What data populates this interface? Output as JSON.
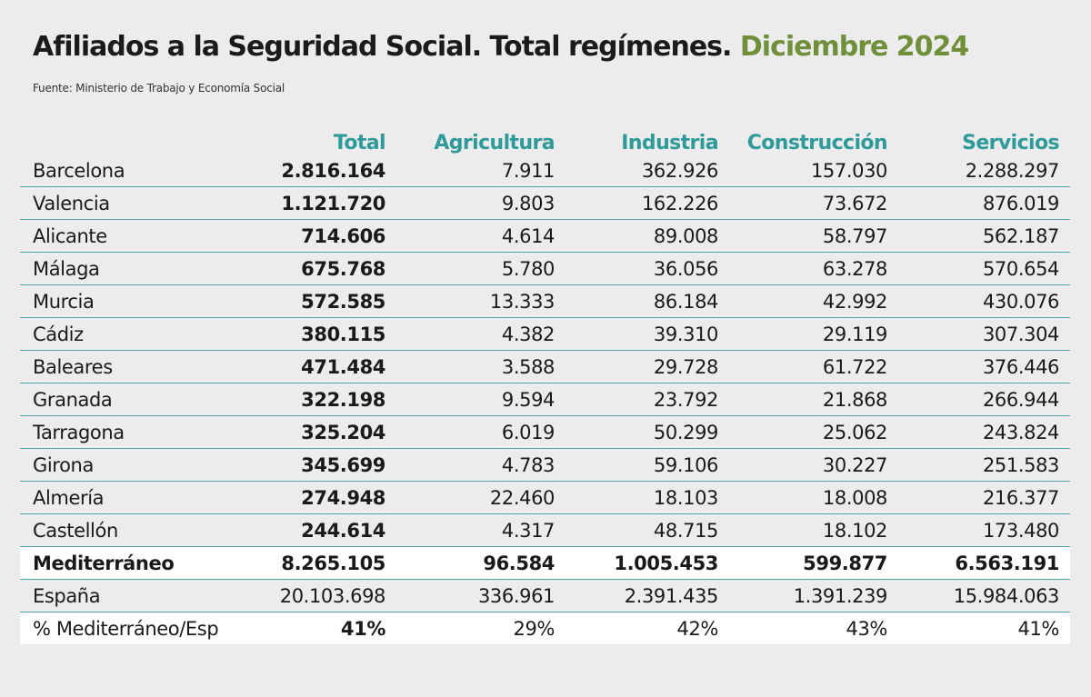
{
  "header": {
    "title_main": "Afiliados a la Seguridad Social. Total regímenes.",
    "title_highlight": "Diciembre 2024",
    "source": "Fuente: Ministerio de Trabajo y Economía Social"
  },
  "table": {
    "columns": [
      "Total",
      "Agricultura",
      "Industria",
      "Construcción",
      "Servicios"
    ],
    "rows": [
      {
        "name": "Barcelona",
        "total": "2.816.164",
        "agricultura": "7.911",
        "industria": "362.926",
        "construccion": "157.030",
        "servicios": "2.288.297"
      },
      {
        "name": "Valencia",
        "total": "1.121.720",
        "agricultura": "9.803",
        "industria": "162.226",
        "construccion": "73.672",
        "servicios": "876.019"
      },
      {
        "name": "Alicante",
        "total": "714.606",
        "agricultura": "4.614",
        "industria": "89.008",
        "construccion": "58.797",
        "servicios": "562.187"
      },
      {
        "name": "Málaga",
        "total": "675.768",
        "agricultura": "5.780",
        "industria": "36.056",
        "construccion": "63.278",
        "servicios": "570.654"
      },
      {
        "name": "Murcia",
        "total": "572.585",
        "agricultura": "13.333",
        "industria": "86.184",
        "construccion": "42.992",
        "servicios": "430.076"
      },
      {
        "name": "Cádiz",
        "total": "380.115",
        "agricultura": "4.382",
        "industria": "39.310",
        "construccion": "29.119",
        "servicios": "307.304"
      },
      {
        "name": "Baleares",
        "total": "471.484",
        "agricultura": "3.588",
        "industria": "29.728",
        "construccion": "61.722",
        "servicios": "376.446"
      },
      {
        "name": "Granada",
        "total": "322.198",
        "agricultura": "9.594",
        "industria": "23.792",
        "construccion": "21.868",
        "servicios": "266.944"
      },
      {
        "name": "Tarragona",
        "total": "325.204",
        "agricultura": "6.019",
        "industria": "50.299",
        "construccion": "25.062",
        "servicios": "243.824"
      },
      {
        "name": "Girona",
        "total": "345.699",
        "agricultura": "4.783",
        "industria": "59.106",
        "construccion": "30.227",
        "servicios": "251.583"
      },
      {
        "name": "Almería",
        "total": "274.948",
        "agricultura": "22.460",
        "industria": "18.103",
        "construccion": "18.008",
        "servicios": "216.377"
      },
      {
        "name": "Castellón",
        "total": "244.614",
        "agricultura": "4.317",
        "industria": "48.715",
        "construccion": "18.102",
        "servicios": "173.480"
      },
      {
        "name": "Mediterráneo",
        "total": "8.265.105",
        "agricultura": "96.584",
        "industria": "1.005.453",
        "construccion": "599.877",
        "servicios": "6.563.191"
      },
      {
        "name": "España",
        "total": "20.103.698",
        "agricultura": "336.961",
        "industria": "2.391.435",
        "construccion": "1.391.239",
        "servicios": "15.984.063"
      },
      {
        "name": "% Mediterráneo/Esp",
        "total": "41%",
        "agricultura": "29%",
        "industria": "42%",
        "construccion": "43%",
        "servicios": "41%"
      }
    ]
  },
  "colors": {
    "background": "#ececec",
    "header_teal": "#2e9a9a",
    "title_green": "#6f8f3a",
    "rule_teal": "#4fa3a3",
    "highlight_row": "#ffffff"
  }
}
